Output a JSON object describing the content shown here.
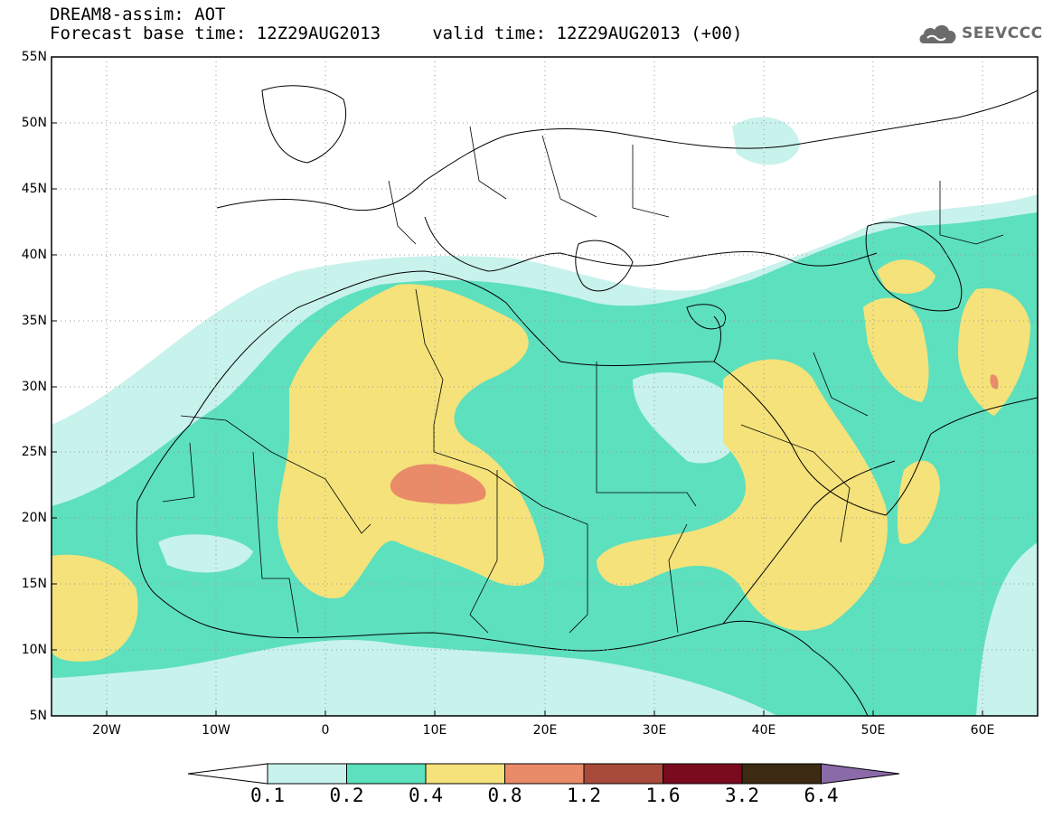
{
  "title_line1": "DREAM8-assim: AOT",
  "title_line2": "Forecast base time: 12Z29AUG2013     valid time: 12Z29AUG2013 (+00)",
  "logo": {
    "icon": "cloud-logo-icon",
    "text": "SEEVCCC"
  },
  "map": {
    "lon_range": [
      -25,
      65
    ],
    "lat_range": [
      5,
      55
    ],
    "lat_ticks": [
      "5N",
      "10N",
      "15N",
      "20N",
      "25N",
      "30N",
      "35N",
      "40N",
      "45N",
      "50N",
      "55N"
    ],
    "lon_ticks": [
      "20W",
      "10W",
      "0",
      "10E",
      "20E",
      "30E",
      "40E",
      "50E",
      "60E"
    ],
    "grid": "dotted",
    "levels_colors": {
      "0.1": "#c8f2ec",
      "0.2": "#5de0bd",
      "0.4": "#f5e27a",
      "0.8": "#e98b69",
      "1.2": "#a84a3a"
    }
  },
  "colorbar": {
    "labels": [
      "0.1",
      "0.2",
      "0.4",
      "0.8",
      "1.2",
      "1.6",
      "3.2",
      "6.4"
    ],
    "colors": [
      "#c8f2ec",
      "#5de0bd",
      "#f5e27a",
      "#e98b69",
      "#a84a3a",
      "#7a0a1e",
      "#3c2a12"
    ],
    "below_color": "#ffffff",
    "above_color": "#8a6aa8"
  }
}
